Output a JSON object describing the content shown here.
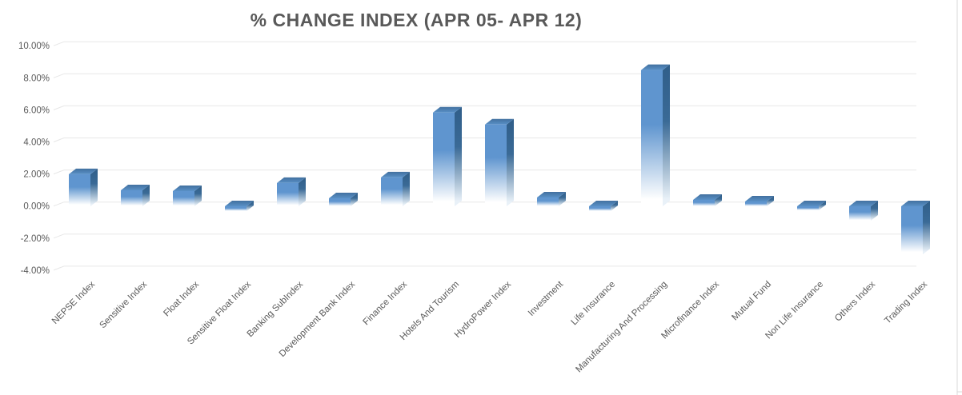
{
  "chart_data": {
    "type": "bar",
    "style": "3d-column",
    "title": "% CHANGE INDEX (APR 05- APR 12)",
    "xlabel": "",
    "ylabel": "",
    "unit": "%",
    "ylim": [
      -4,
      10
    ],
    "grid": true,
    "legend_position": "none",
    "categories": [
      "NEPSE Index",
      "Sensitive Index",
      "Float Index",
      "Sensitive Float Index",
      "Banking SubIndex",
      "Development Bank Index",
      "Finance Index",
      "Hotels And Tourism",
      "HydroPower Index",
      "Investment",
      "Life Insurance",
      "Manufacturing And Processing",
      "Microfinance Index",
      "Mutual Fund",
      "Non Life Insurance",
      "Others Index",
      "Trading Index"
    ],
    "values": [
      2.0,
      1.0,
      0.95,
      -0.3,
      1.45,
      0.5,
      1.8,
      5.85,
      5.1,
      0.55,
      -0.3,
      8.5,
      0.4,
      0.3,
      -0.25,
      -0.9,
      -3.0
    ],
    "ytick_labels": [
      "10.00%",
      "8.00%",
      "6.00%",
      "4.00%",
      "2.00%",
      "0.00%",
      "-2.00%",
      "-4.00%"
    ],
    "ytick_values": [
      10,
      8,
      6,
      4,
      2,
      0,
      -2,
      -4
    ],
    "colors": {
      "bar_front": "#5f95cf",
      "bar_top_dark": "#42709f",
      "bar_top_light": "#5990c6",
      "bar_side": "#305e89",
      "fade_to": "#ffffff",
      "title_text": "#595959",
      "axis_text": "#595959",
      "gridline": "#e7e7e7",
      "border_line": "#d9d9d9",
      "background": "#ffffff"
    }
  }
}
